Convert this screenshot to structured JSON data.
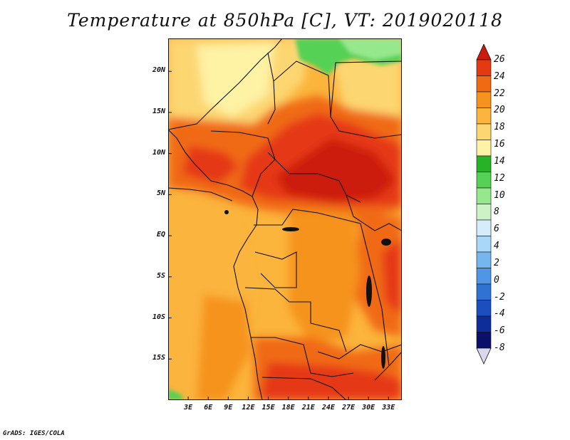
{
  "title": "Temperature at 850hPa [C], VT: 2019020118",
  "credit": "GrADS: IGES/COLA",
  "map": {
    "lon_range": [
      0,
      35
    ],
    "lat_range": [
      -20,
      24
    ],
    "lat_ticks": [
      {
        "value": 20,
        "label": "20N"
      },
      {
        "value": 15,
        "label": "15N"
      },
      {
        "value": 10,
        "label": "10N"
      },
      {
        "value": 5,
        "label": "5N"
      },
      {
        "value": 0,
        "label": "EQ"
      },
      {
        "value": -5,
        "label": "5S"
      },
      {
        "value": -10,
        "label": "10S"
      },
      {
        "value": -15,
        "label": "15S"
      }
    ],
    "lon_ticks": [
      {
        "value": 3,
        "label": "3E"
      },
      {
        "value": 6,
        "label": "6E"
      },
      {
        "value": 9,
        "label": "9E"
      },
      {
        "value": 12,
        "label": "12E"
      },
      {
        "value": 15,
        "label": "15E"
      },
      {
        "value": 18,
        "label": "18E"
      },
      {
        "value": 21,
        "label": "21E"
      },
      {
        "value": 24,
        "label": "24E"
      },
      {
        "value": 27,
        "label": "27E"
      },
      {
        "value": 30,
        "label": "30E"
      },
      {
        "value": 33,
        "label": "33E"
      }
    ]
  },
  "colorbar": {
    "levels": [
      {
        "label": "26"
      },
      {
        "label": "24"
      },
      {
        "label": "22"
      },
      {
        "label": "20"
      },
      {
        "label": "18"
      },
      {
        "label": "16"
      },
      {
        "label": "14"
      },
      {
        "label": "12"
      },
      {
        "label": "10"
      },
      {
        "label": "8"
      },
      {
        "label": "6"
      },
      {
        "label": "4"
      },
      {
        "label": "2"
      },
      {
        "label": "0"
      },
      {
        "label": "-2"
      },
      {
        "label": "-4"
      },
      {
        "label": "-6"
      },
      {
        "label": "-8"
      }
    ],
    "colors_top_to_bottom": [
      "#cc1a0e",
      "#e53912",
      "#f06a12",
      "#f5931c",
      "#fbb43c",
      "#fcd671",
      "#fef2a4",
      "#27b327",
      "#55d155",
      "#96e88d",
      "#cdf2c5",
      "#d7ecfb",
      "#a9d7f7",
      "#76b6ef",
      "#4f96e6",
      "#2e72d4",
      "#1b4fc0",
      "#0f2d99",
      "#0a0f6b",
      "#d8d8ee"
    ]
  }
}
